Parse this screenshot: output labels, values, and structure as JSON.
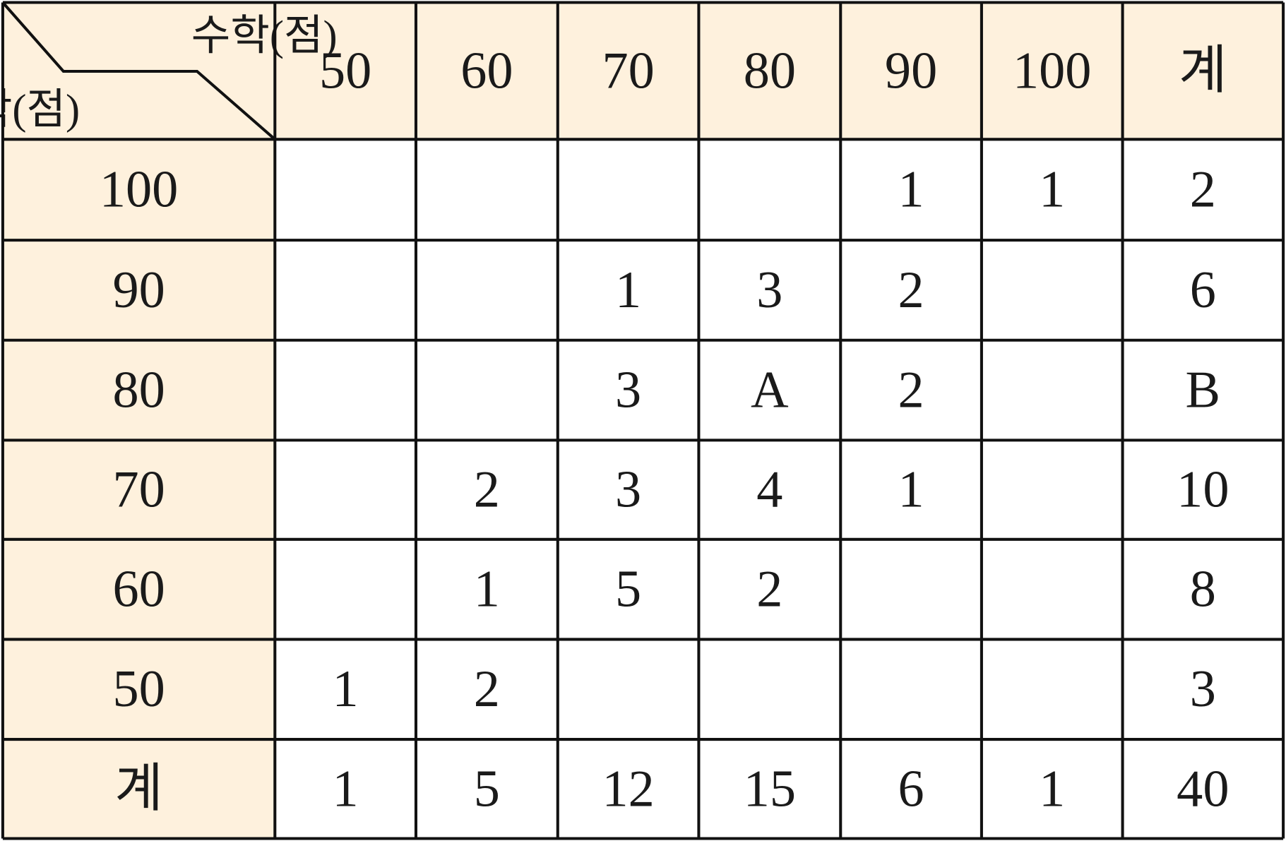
{
  "table": {
    "corner": {
      "column_header": "수학(점)",
      "row_header": "과학(점)"
    },
    "columns": [
      50,
      60,
      70,
      80,
      90,
      100,
      "계"
    ],
    "rows": [
      {
        "label": 100,
        "cells": [
          null,
          null,
          null,
          null,
          1,
          1,
          2
        ]
      },
      {
        "label": 90,
        "cells": [
          null,
          null,
          1,
          3,
          2,
          null,
          6
        ]
      },
      {
        "label": 80,
        "cells": [
          null,
          null,
          3,
          "A",
          2,
          null,
          "B"
        ]
      },
      {
        "label": 70,
        "cells": [
          null,
          2,
          3,
          4,
          1,
          null,
          10
        ]
      },
      {
        "label": 60,
        "cells": [
          null,
          1,
          5,
          2,
          null,
          null,
          8
        ]
      },
      {
        "label": 50,
        "cells": [
          1,
          2,
          null,
          null,
          null,
          null,
          3
        ]
      },
      {
        "label": "계",
        "cells": [
          1,
          5,
          12,
          15,
          6,
          1,
          40
        ]
      }
    ]
  }
}
